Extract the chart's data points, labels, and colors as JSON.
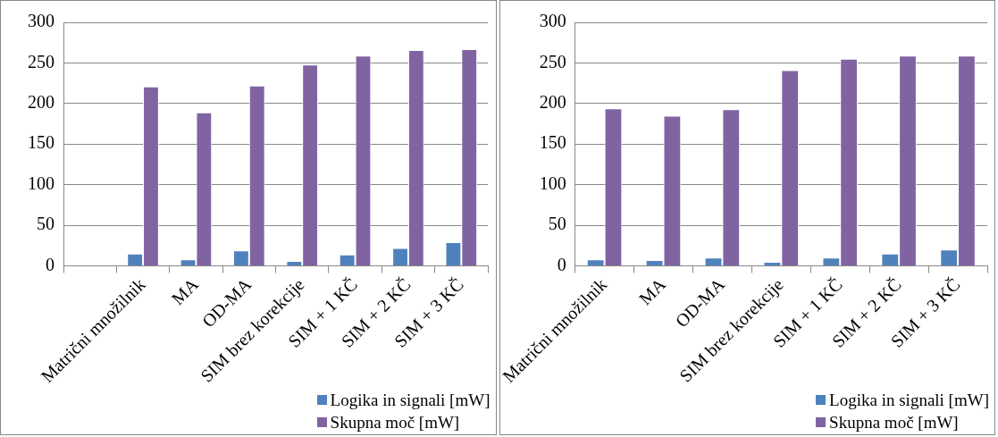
{
  "chart_data": [
    {
      "type": "bar",
      "categories": [
        null,
        "Matrični množilnik",
        "MA",
        "OD-MA",
        "SIM brez korekcije",
        "SIM + 1 KČ",
        "SIM + 2 KČ",
        "SIM + 3 KČ"
      ],
      "series": [
        {
          "name": "Logika in signali [mW]",
          "color": "#4f81bd",
          "values": [
            null,
            15,
            8,
            19,
            6,
            14,
            22,
            29
          ]
        },
        {
          "name": "Skupna moč [mW]",
          "color": "#8064a2",
          "values": [
            null,
            221,
            189,
            222,
            248,
            259,
            266,
            267
          ]
        }
      ],
      "ylim": [
        0,
        300
      ],
      "yticks": [
        0,
        50,
        100,
        150,
        200,
        250,
        300
      ],
      "grid": "y",
      "legend": "bottom right"
    },
    {
      "type": "bar",
      "categories": [
        "Matrični množilnik",
        "MA",
        "OD-MA",
        "SIM brez korekcije",
        "SIM + 1 KČ",
        "SIM + 2 KČ",
        "SIM + 3 KČ"
      ],
      "series": [
        {
          "name": "Logika in signali [mW]",
          "color": "#4f81bd",
          "values": [
            8,
            7,
            10,
            5,
            10,
            15,
            20
          ]
        },
        {
          "name": "Skupna moč [mW]",
          "color": "#8064a2",
          "values": [
            194,
            185,
            193,
            241,
            255,
            259,
            259
          ]
        }
      ],
      "ylim": [
        0,
        300
      ],
      "yticks": [
        0,
        50,
        100,
        150,
        200,
        250,
        300
      ],
      "grid": "y",
      "legend": "bottom right"
    }
  ]
}
